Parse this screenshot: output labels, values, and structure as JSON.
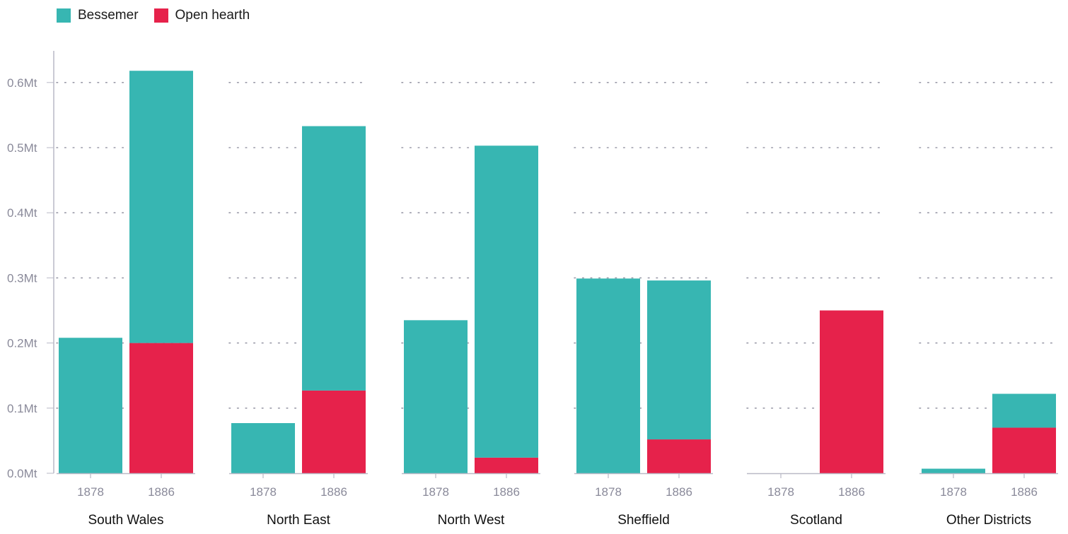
{
  "legend": [
    {
      "name": "Bessemer",
      "color": "#37B6B2"
    },
    {
      "name": "Open hearth",
      "color": "#E6224B"
    }
  ],
  "chart_data": {
    "type": "bar",
    "stacked": true,
    "grouped": true,
    "unit": "Mt",
    "yticks": [
      "0.0Mt",
      "0.1Mt",
      "0.2Mt",
      "0.3Mt",
      "0.4Mt",
      "0.5Mt",
      "0.6Mt"
    ],
    "ylim": [
      0,
      0.6
    ],
    "grid": "dotted horizontal",
    "legend_position": "top-left",
    "groups": [
      {
        "label": "South Wales",
        "bars": [
          {
            "year": "1878",
            "bessemer": 0.208,
            "open_hearth": 0.0
          },
          {
            "year": "1886",
            "bessemer": 0.418,
            "open_hearth": 0.2
          }
        ]
      },
      {
        "label": "North East",
        "bars": [
          {
            "year": "1878",
            "bessemer": 0.077,
            "open_hearth": 0.0
          },
          {
            "year": "1886",
            "bessemer": 0.406,
            "open_hearth": 0.127
          }
        ]
      },
      {
        "label": "North West",
        "bars": [
          {
            "year": "1878",
            "bessemer": 0.235,
            "open_hearth": 0.0
          },
          {
            "year": "1886",
            "bessemer": 0.479,
            "open_hearth": 0.024
          }
        ]
      },
      {
        "label": "Sheffield",
        "bars": [
          {
            "year": "1878",
            "bessemer": 0.299,
            "open_hearth": 0.0
          },
          {
            "year": "1886",
            "bessemer": 0.244,
            "open_hearth": 0.052
          }
        ]
      },
      {
        "label": "Scotland",
        "bars": [
          {
            "year": "1878",
            "bessemer": 0.0,
            "open_hearth": 0.0
          },
          {
            "year": "1886",
            "bessemer": 0.0,
            "open_hearth": 0.25
          }
        ]
      },
      {
        "label": "Other Districts",
        "bars": [
          {
            "year": "1878",
            "bessemer": 0.007,
            "open_hearth": 0.0
          },
          {
            "year": "1886",
            "bessemer": 0.052,
            "open_hearth": 0.07
          }
        ]
      }
    ]
  }
}
